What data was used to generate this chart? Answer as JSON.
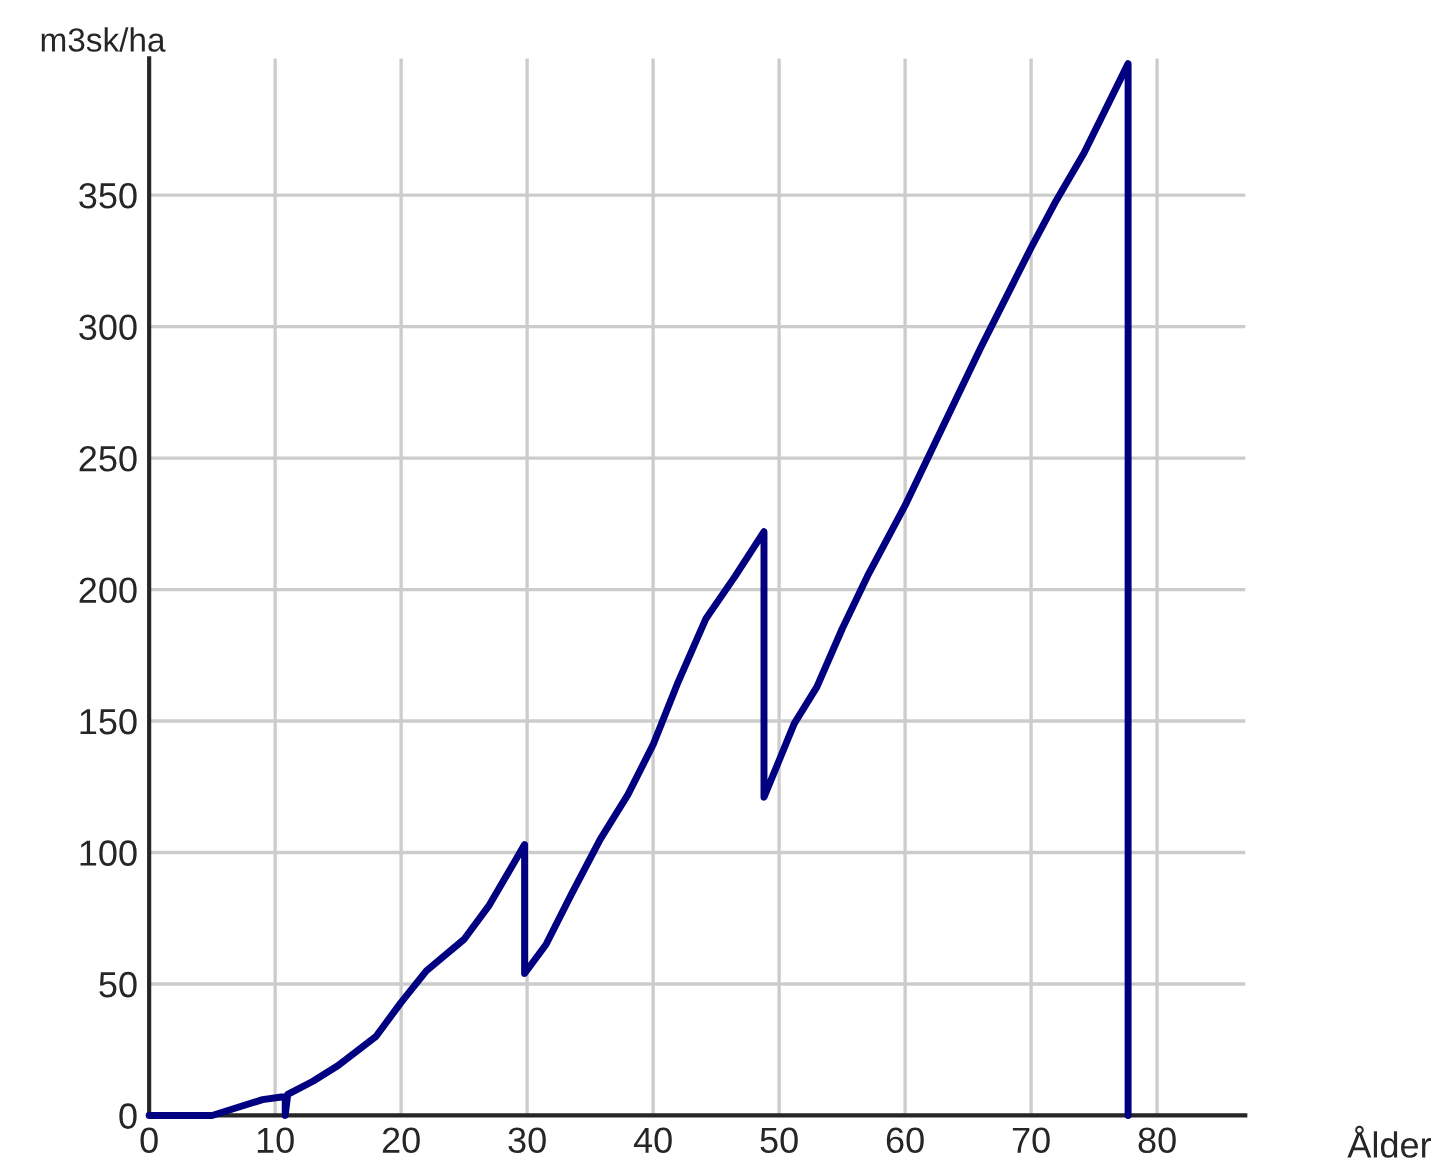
{
  "chart_data": {
    "type": "line",
    "ylabel": "m3sk/ha",
    "xlabel": "Ålder",
    "x": [
      0,
      5,
      7,
      9,
      10.5,
      10.8,
      10.8,
      11,
      13,
      15,
      18,
      20,
      22,
      25,
      27,
      29.8,
      29.8,
      31.5,
      33.5,
      35.8,
      38,
      40,
      42,
      44.2,
      46.5,
      48.8,
      48.8,
      50,
      51.2,
      53,
      55,
      57,
      60,
      63,
      66,
      70,
      72,
      74.2,
      77.7,
      77.7
    ],
    "series": [
      {
        "color": "#000080",
        "values": [
          0,
          0,
          3,
          6,
          7,
          7,
          0,
          8,
          13,
          19,
          30,
          43,
          55,
          67,
          80,
          103,
          54,
          65,
          84,
          105,
          122,
          141,
          165,
          189,
          205,
          222,
          121,
          135,
          149,
          163,
          185,
          205,
          232,
          262,
          292,
          330,
          348,
          366,
          400,
          0
        ]
      }
    ],
    "xlim": [
      0,
      87
    ],
    "ylim": [
      0,
      402
    ],
    "xticks": [
      0,
      10,
      20,
      30,
      40,
      50,
      60,
      70,
      80
    ],
    "yticks": [
      0,
      50,
      100,
      150,
      200,
      250,
      300,
      350
    ],
    "grid": true,
    "legend": false,
    "marker": "none",
    "line_style": "solid"
  }
}
